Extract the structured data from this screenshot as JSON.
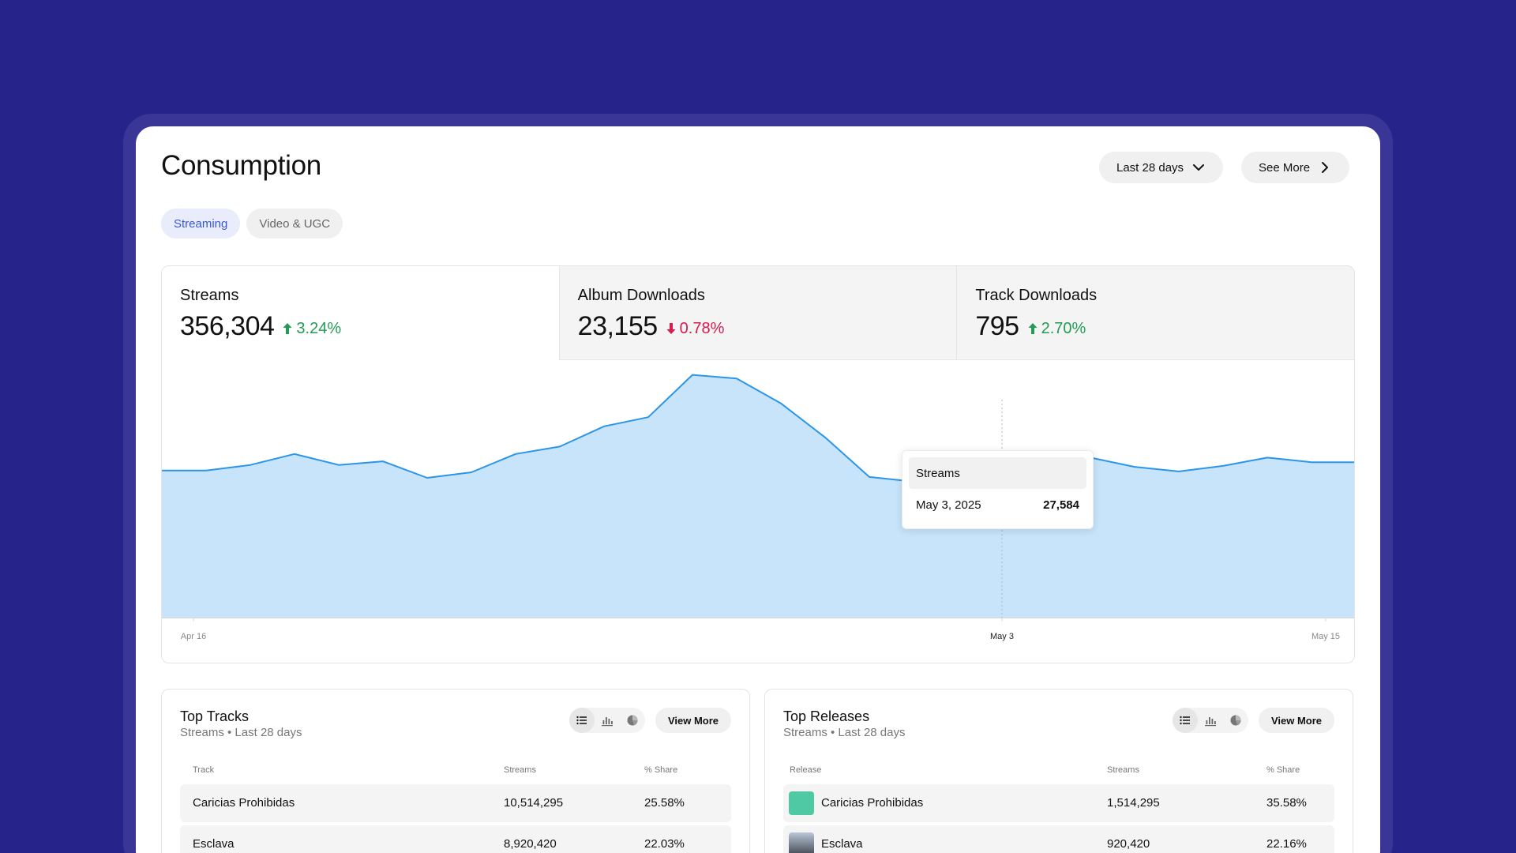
{
  "page": {
    "title": "Consumption"
  },
  "header": {
    "range_label": "Last 28 days",
    "see_more_label": "See More"
  },
  "tabs": [
    {
      "label": "Streaming",
      "active": true
    },
    {
      "label": "Video & UGC",
      "active": false
    }
  ],
  "kpis": [
    {
      "label": "Streams",
      "value": "356,304",
      "delta": "3.24%",
      "direction": "up"
    },
    {
      "label": "Album Downloads",
      "value": "23,155",
      "delta": "0.78%",
      "direction": "down"
    },
    {
      "label": "Track Downloads",
      "value": "795",
      "delta": "2.70%",
      "direction": "up"
    }
  ],
  "tooltip": {
    "title": "Streams",
    "date": "May 3, 2025",
    "value": "27,584"
  },
  "chart_data": {
    "type": "area",
    "series": [
      {
        "values": [
          28000,
          28000,
          28600,
          29800,
          28600,
          29000,
          27200,
          27800,
          29800,
          30600,
          32800,
          33800,
          38400,
          38000,
          35300,
          31600,
          27300,
          26800,
          28000,
          27584,
          27800,
          29400,
          28400,
          27900,
          28500,
          29400,
          28900,
          28900
        ]
      }
    ],
    "x_ticks": [
      "Apr 16",
      "May 3",
      "May 15"
    ],
    "highlight_index": 19,
    "ylim": [
      12000,
      40000
    ],
    "colors": {
      "line": "#2b95e8",
      "fill": "#c8e4fa"
    }
  },
  "top_tracks": {
    "title": "Top Tracks",
    "subtitle": "Streams • Last 28 days",
    "view_more": "View More",
    "columns": [
      "Track",
      "Streams",
      "% Share"
    ],
    "rows": [
      {
        "name": "Caricias Prohibidas",
        "streams": "10,514,295",
        "share": "25.58%"
      },
      {
        "name": "Esclava",
        "streams": "8,920,420",
        "share": "22.03%"
      }
    ]
  },
  "top_releases": {
    "title": "Top Releases",
    "subtitle": "Streams • Last 28 days",
    "view_more": "View More",
    "columns": [
      "Release",
      "Streams",
      "% Share"
    ],
    "rows": [
      {
        "name": "Caricias Prohibidas",
        "streams": "1,514,295",
        "share": "35.58%"
      },
      {
        "name": "Esclava",
        "streams": "920,420",
        "share": "22.16%"
      }
    ]
  }
}
